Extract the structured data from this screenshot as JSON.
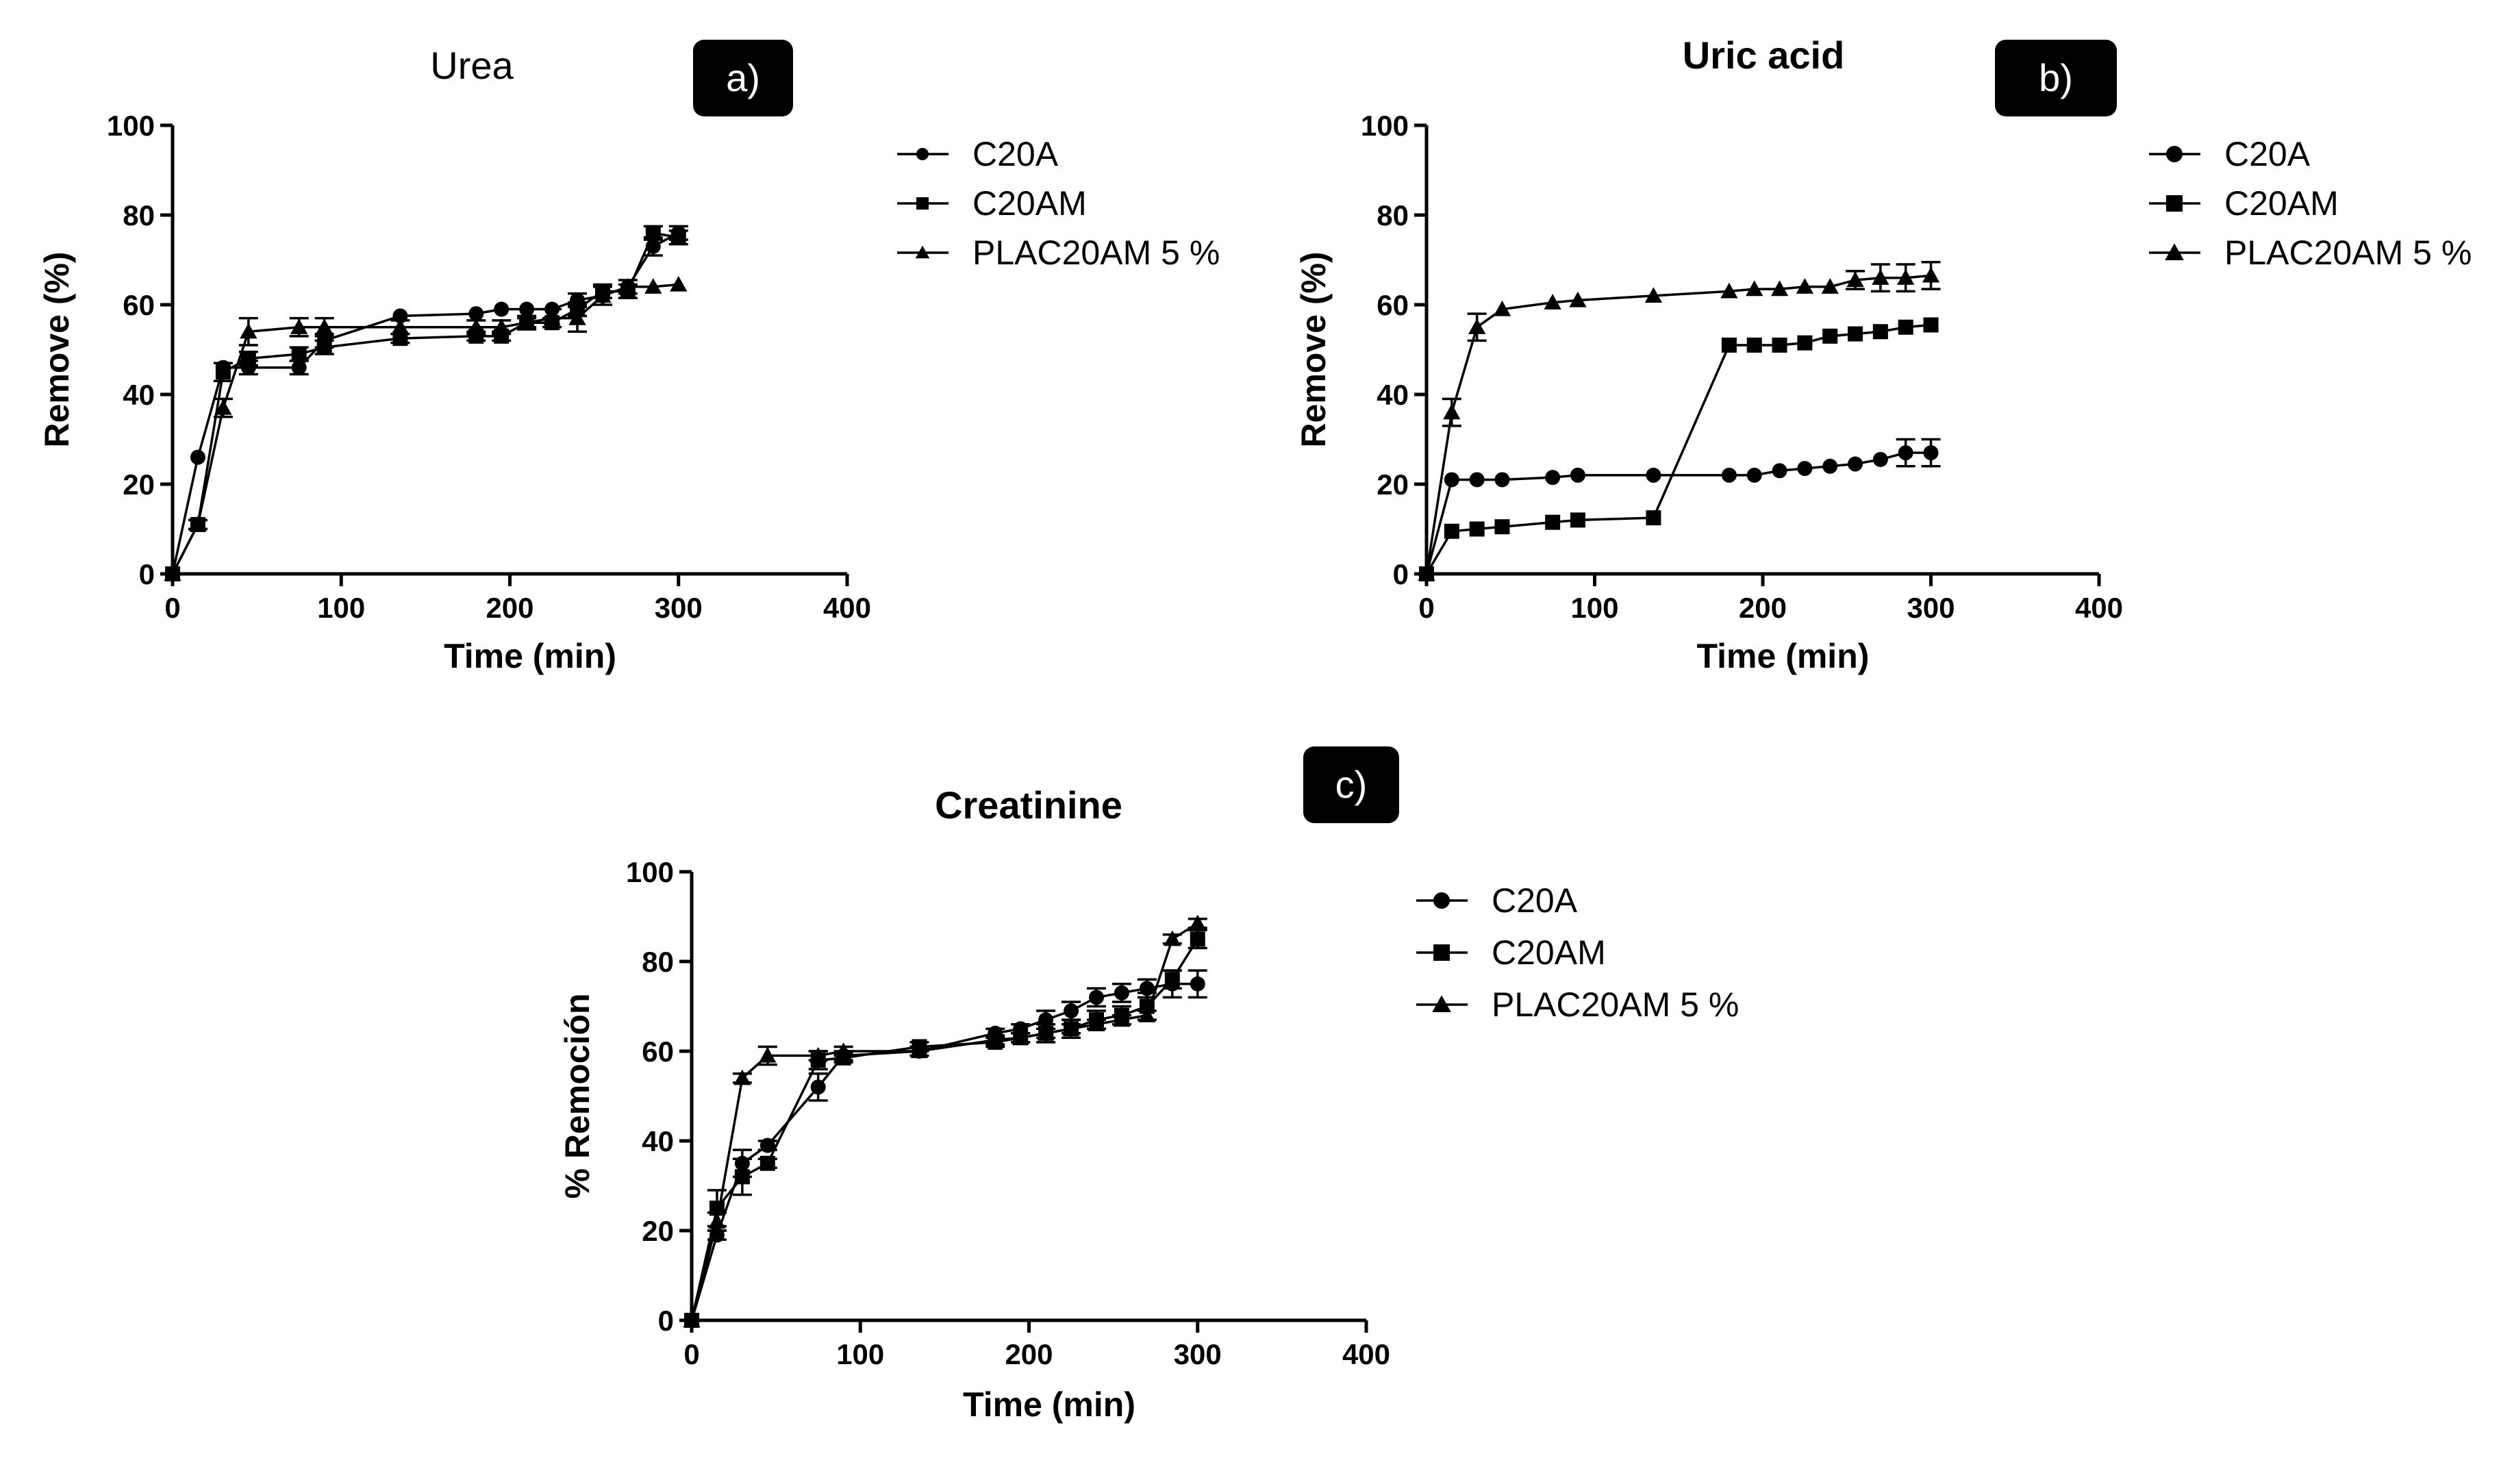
{
  "chart_data": [
    {
      "type": "line",
      "panel_label": "a)",
      "title": "Urea",
      "xlabel": "Time (min)",
      "ylabel": "Remove (%)",
      "xlim": [
        0,
        400
      ],
      "ylim": [
        0,
        100
      ],
      "xticks": [
        "0",
        "100",
        "200",
        "300",
        "400"
      ],
      "yticks": [
        "0",
        "20",
        "40",
        "60",
        "80",
        "100"
      ],
      "legend": "right",
      "series": [
        {
          "name": "C20A",
          "marker": "circle",
          "x": [
            0,
            15,
            30,
            45,
            75,
            90,
            135,
            180,
            195,
            210,
            225,
            240,
            255,
            270,
            285,
            300
          ],
          "y": [
            0,
            26,
            46,
            46,
            46,
            52,
            57.5,
            58,
            59,
            59,
            59,
            61,
            62,
            64,
            73,
            76
          ],
          "err": [
            0,
            0,
            0,
            1.5,
            1.5,
            1.5,
            0,
            0,
            0,
            0,
            0,
            1.5,
            0,
            0,
            2,
            1.5
          ]
        },
        {
          "name": "C20AM",
          "marker": "square",
          "x": [
            0,
            15,
            30,
            45,
            75,
            90,
            135,
            180,
            195,
            210,
            225,
            240,
            255,
            270,
            285,
            300
          ],
          "y": [
            0,
            11,
            45,
            48,
            49,
            50.5,
            52.5,
            53,
            53,
            56,
            56,
            59,
            63,
            63,
            76,
            75
          ],
          "err": [
            0,
            1,
            2,
            1.5,
            1.5,
            1.5,
            1,
            1,
            1,
            1,
            1,
            1.5,
            1.5,
            1.5,
            1.5,
            1.5
          ]
        },
        {
          "name": "PLAC20AM 5 %",
          "marker": "triangle",
          "x": [
            0,
            15,
            30,
            45,
            75,
            90,
            135,
            180,
            195,
            210,
            225,
            240,
            255,
            270,
            285,
            300
          ],
          "y": [
            0,
            11,
            37,
            54,
            55,
            55,
            55,
            55,
            55,
            56,
            57,
            57,
            62,
            64,
            64,
            64.5
          ],
          "err": [
            0,
            1,
            2,
            3,
            2,
            2,
            1.5,
            1.5,
            1.5,
            1.5,
            2,
            3,
            2,
            1.5,
            0,
            0
          ]
        }
      ]
    },
    {
      "type": "line",
      "panel_label": "b)",
      "title": "Uric acid",
      "xlabel": "Time (min)",
      "ylabel": "Remove (%)",
      "xlim": [
        0,
        400
      ],
      "ylim": [
        0,
        100
      ],
      "xticks": [
        "0",
        "100",
        "200",
        "300",
        "400"
      ],
      "yticks": [
        "0",
        "20",
        "40",
        "60",
        "80",
        "100"
      ],
      "legend": "right",
      "series": [
        {
          "name": "C20A",
          "marker": "circle",
          "x": [
            0,
            15,
            30,
            45,
            75,
            90,
            135,
            180,
            195,
            210,
            225,
            240,
            255,
            270,
            285,
            300
          ],
          "y": [
            0,
            21,
            21,
            21,
            21.5,
            22,
            22,
            22,
            22,
            23,
            23.5,
            24,
            24.5,
            25.5,
            27,
            27
          ],
          "err": [
            0,
            0,
            0,
            0,
            0,
            0,
            0,
            0,
            0,
            0,
            0,
            0,
            0,
            0,
            3,
            3
          ]
        },
        {
          "name": "C20AM",
          "marker": "square",
          "x": [
            0,
            15,
            30,
            45,
            75,
            90,
            135,
            180,
            195,
            210,
            225,
            240,
            255,
            270,
            285,
            300
          ],
          "y": [
            0,
            9.5,
            10,
            10.5,
            11.5,
            12,
            12.5,
            51,
            51,
            51,
            51.5,
            53,
            53.5,
            54,
            55,
            55.5
          ],
          "err": [
            0,
            0,
            0,
            0,
            0,
            0,
            0,
            0,
            0,
            0,
            0,
            0,
            0,
            0,
            0,
            0
          ]
        },
        {
          "name": "PLAC20AM 5 %",
          "marker": "triangle",
          "x": [
            0,
            15,
            30,
            45,
            75,
            90,
            135,
            180,
            195,
            210,
            225,
            240,
            255,
            270,
            285,
            300
          ],
          "y": [
            0,
            36,
            55,
            59,
            60.5,
            61,
            62,
            63,
            63.5,
            63.5,
            64,
            64,
            65.5,
            66,
            66,
            66.5
          ],
          "err": [
            0,
            3,
            3,
            0,
            0,
            0,
            0,
            0,
            0,
            0,
            0,
            0,
            2,
            3,
            3,
            3
          ]
        }
      ]
    },
    {
      "type": "line",
      "panel_label": "c)",
      "title": "Creatinine",
      "xlabel": "Time (min)",
      "ylabel": "% Remoción",
      "xlim": [
        0,
        400
      ],
      "ylim": [
        0,
        100
      ],
      "xticks": [
        "0",
        "100",
        "200",
        "300",
        "400"
      ],
      "yticks": [
        "0",
        "20",
        "40",
        "60",
        "80",
        "100"
      ],
      "legend": "right",
      "series": [
        {
          "name": "C20A",
          "marker": "circle",
          "x": [
            0,
            15,
            30,
            45,
            75,
            90,
            135,
            180,
            195,
            210,
            225,
            240,
            255,
            270,
            285,
            300
          ],
          "y": [
            0,
            19,
            35,
            39,
            52,
            59,
            60,
            64,
            65,
            67,
            69,
            72,
            73,
            74,
            75,
            75
          ],
          "err": [
            0,
            1,
            3,
            1,
            3,
            1,
            1,
            1,
            1,
            2,
            2,
            2,
            2,
            2,
            3,
            3
          ]
        },
        {
          "name": "C20AM",
          "marker": "square",
          "x": [
            0,
            15,
            30,
            45,
            75,
            90,
            135,
            180,
            195,
            210,
            225,
            240,
            255,
            270,
            285,
            300
          ],
          "y": [
            0,
            25,
            32,
            35,
            58,
            58.5,
            61,
            62,
            63,
            64,
            65,
            67,
            68,
            70,
            76,
            85
          ],
          "err": [
            0,
            4,
            4,
            1,
            2,
            1,
            1,
            1,
            1,
            2,
            2,
            2,
            2,
            3,
            2,
            2
          ]
        },
        {
          "name": "PLAC20AM 5 %",
          "marker": "triangle",
          "x": [
            0,
            15,
            30,
            45,
            75,
            90,
            135,
            180,
            195,
            210,
            225,
            240,
            255,
            270,
            285,
            300
          ],
          "y": [
            0,
            22,
            54,
            59,
            59,
            60,
            60,
            62.5,
            63,
            64,
            65,
            66,
            67,
            68,
            85,
            88.5
          ],
          "err": [
            0,
            2,
            1,
            2,
            1,
            1,
            1,
            1,
            1,
            1,
            1,
            1,
            1,
            1,
            1,
            1
          ]
        }
      ]
    }
  ]
}
